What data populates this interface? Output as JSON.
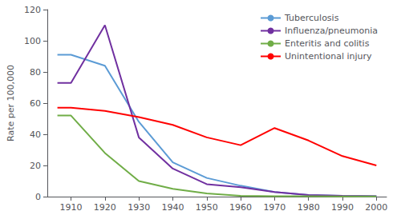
{
  "chart_data": {
    "type": "line",
    "x": [
      1906,
      1910,
      1920,
      1930,
      1940,
      1950,
      1960,
      1970,
      1980,
      1990,
      2000
    ],
    "series": [
      {
        "name": "Tuberculosis",
        "color": "#5B9BD5",
        "values": [
          91,
          91,
          84,
          48,
          22,
          12,
          7,
          3,
          1,
          0.5,
          0.3
        ]
      },
      {
        "name": "Influenza/pneumonia",
        "color": "#7030A0",
        "values": [
          73,
          73,
          110,
          38,
          18,
          8,
          6,
          3,
          1,
          0.5,
          0.3
        ]
      },
      {
        "name": "Enteritis and colitis",
        "color": "#70AD47",
        "values": [
          52,
          52,
          28,
          10,
          5,
          2,
          0.5,
          0.3,
          0.2,
          0.1,
          0.1
        ]
      },
      {
        "name": "Unintentional injury",
        "color": "#FF0000",
        "values": [
          57,
          57,
          55,
          51,
          46,
          38,
          33,
          44,
          36,
          26,
          20
        ]
      }
    ],
    "xlim": [
      1903,
      2003
    ],
    "xticks": [
      1910,
      1920,
      1930,
      1940,
      1950,
      1960,
      1970,
      1980,
      1990,
      2000
    ],
    "ylim": [
      0,
      120
    ],
    "yticks": [
      0,
      20,
      40,
      60,
      80,
      100,
      120
    ],
    "ylabel": "Rate per 100,000",
    "grid": false,
    "legend": "upper right"
  }
}
